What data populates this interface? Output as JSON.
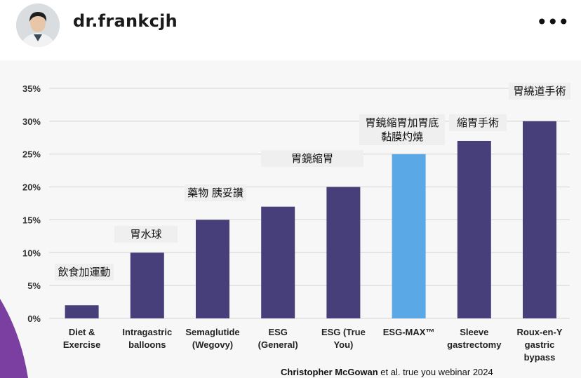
{
  "header": {
    "username": "dr.frankcjh",
    "more_icon": "more-horizontal-icon",
    "more_label": "•••"
  },
  "citation": {
    "author": "Christopher McGowan",
    "rest": " et al. true you webinar 2024"
  },
  "annotations": [
    "飲食加運動",
    "胃水球",
    "藥物 胰妥讚",
    "胃鏡縮胃",
    "胃鏡縮胃加胃底黏膜灼燒",
    "縮胃手術",
    "胃繞道手術"
  ],
  "colors": {
    "bar": "#473f7a",
    "highlight_bar": "#5aa9e6",
    "grid": "#d6d6d6",
    "accent": "#7a3fa0"
  },
  "chart_data": {
    "type": "bar",
    "categories": [
      [
        "Diet &",
        "Exercise"
      ],
      [
        "Intragastric",
        "balloons"
      ],
      [
        "Semaglutide",
        "(Wegovy)"
      ],
      [
        "ESG",
        "(General)"
      ],
      [
        "ESG (True",
        "You)"
      ],
      [
        "ESG-MAX™"
      ],
      [
        "Sleeve",
        "gastrectomy"
      ],
      [
        "Roux-en-Y",
        "gastric",
        "bypass"
      ]
    ],
    "values": [
      2,
      10,
      15,
      17,
      20,
      25,
      27,
      30
    ],
    "highlight_index": 5,
    "ylim": [
      0,
      35
    ],
    "yticks": [
      "0%",
      "5%",
      "10%",
      "15%",
      "20%",
      "25%",
      "30%",
      "35%"
    ],
    "grid": true
  }
}
